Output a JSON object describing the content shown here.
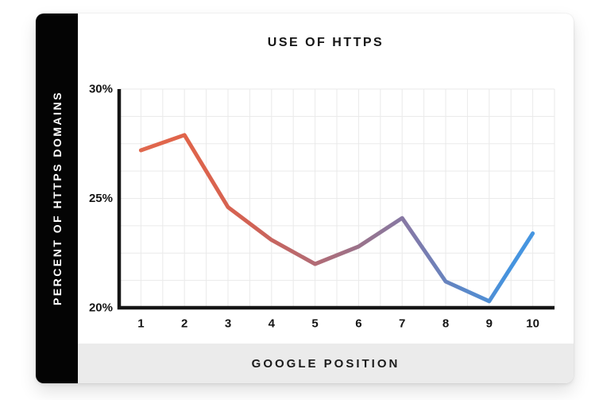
{
  "chart_data": {
    "type": "line",
    "title": "USE OF HTTPS",
    "xlabel": "GOOGLE POSITION",
    "ylabel": "PERCENT OF HTTPS DOMAINS",
    "x": [
      "1",
      "2",
      "3",
      "4",
      "5",
      "6",
      "7",
      "8",
      "9",
      "10"
    ],
    "values": [
      27.2,
      27.9,
      24.6,
      23.1,
      22.0,
      22.8,
      24.1,
      21.2,
      20.3,
      23.4
    ],
    "ylim": [
      20,
      30
    ],
    "y_ticks": [
      {
        "label": "30%",
        "value": 30
      },
      {
        "label": "25%",
        "value": 25
      },
      {
        "label": "20%",
        "value": 20
      }
    ],
    "grid": {
      "columns": 20,
      "rows": 8,
      "on": true
    },
    "legend": "none",
    "line_gradient_stops": [
      {
        "offset": 0.0,
        "color": "#df6a50"
      },
      {
        "offset": 0.15,
        "color": "#e0644a"
      },
      {
        "offset": 0.3,
        "color": "#d26254"
      },
      {
        "offset": 0.45,
        "color": "#b26b75"
      },
      {
        "offset": 0.57,
        "color": "#96748f"
      },
      {
        "offset": 0.67,
        "color": "#8379a8"
      },
      {
        "offset": 0.78,
        "color": "#5e87c6"
      },
      {
        "offset": 0.9,
        "color": "#4594df"
      },
      {
        "offset": 1.0,
        "color": "#4897e2"
      }
    ]
  },
  "colors": {
    "axis": "#151515",
    "grid": "#eaeaea",
    "sidebar_bg": "#040404",
    "sidebar_text": "#ffffff",
    "footer_bg": "#ebebeb",
    "card_bg": "#ffffff"
  }
}
